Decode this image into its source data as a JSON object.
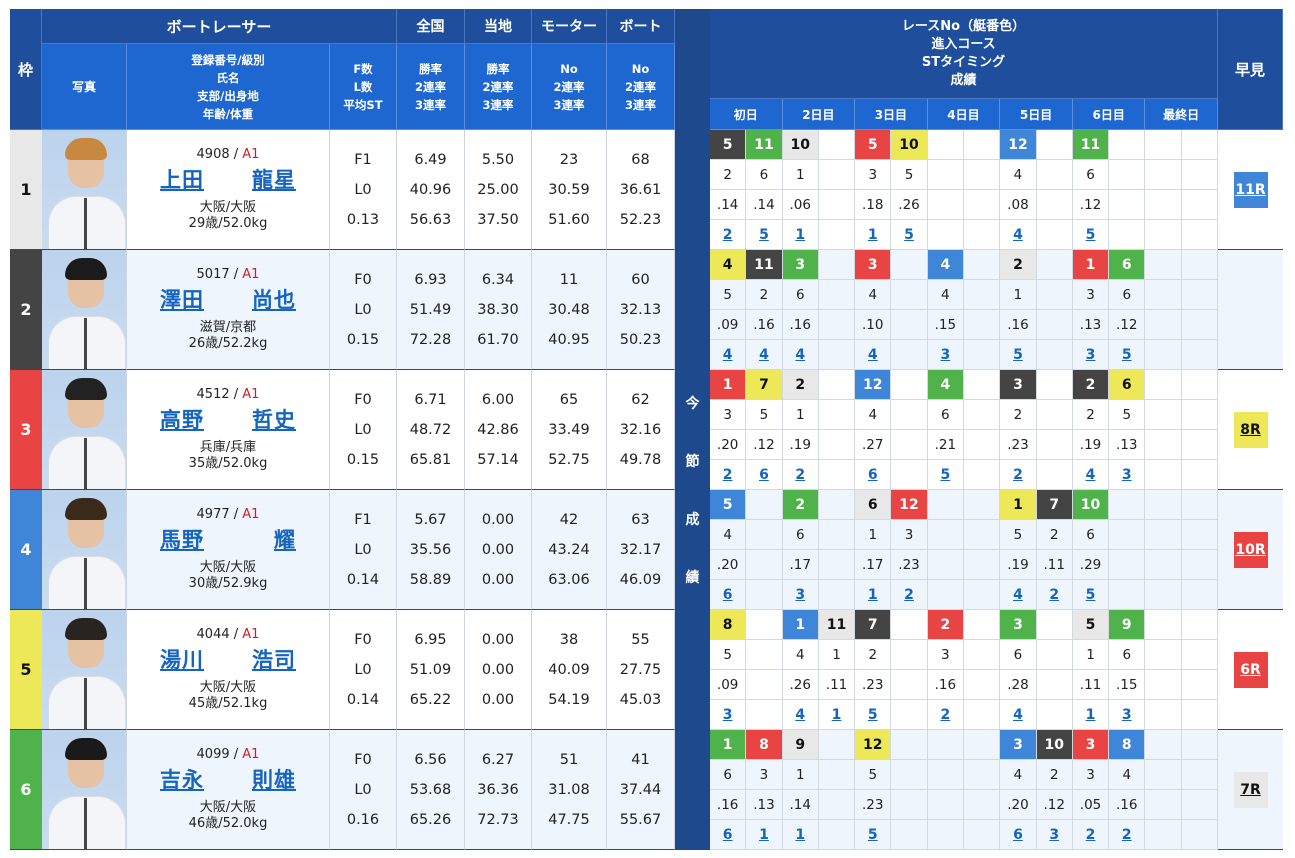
{
  "header": {
    "waku": "枠",
    "racer_group": "ボートレーサー",
    "photo": "写真",
    "info": "登録番号/級別\n氏名\n支部/出身地\n年齢/体重",
    "fl": "F数\nL数\n平均ST",
    "national": "全国",
    "national_sub": "勝率\n2連率\n3連率",
    "local": "当地",
    "local_sub": "勝率\n2連率\n3連率",
    "motor": "モーター",
    "motor_sub": "No\n2連率\n3連率",
    "boat": "ボート",
    "boat_sub": "No\n2連率\n3連率",
    "results_title": "レースNo（艇番色）\n進入コース\nSTタイミング\n成績",
    "hayami": "早見",
    "days": [
      "初日",
      "2日目",
      "3日目",
      "4日目",
      "5日目",
      "6日目",
      "最終日"
    ],
    "konsetsu": [
      "今",
      "節",
      "成",
      "績"
    ]
  },
  "colors": {
    "boat1": "#e8e8e8",
    "boat2": "#444444",
    "boat3": "#e94444",
    "boat4": "#3f85d8",
    "boat5": "#ece857",
    "boat6": "#4fb24a",
    "header_dark": "#1f4f9c",
    "header_light": "#1e66d0",
    "link": "#1565c0"
  },
  "racers": [
    {
      "waku": "1",
      "reg": "4908",
      "cls": "A1",
      "name_family": "上田",
      "name_given": "龍星",
      "branch": "大阪/大阪",
      "age_weight": "29歳/52.0kg",
      "f": "F1",
      "l": "L0",
      "avg_st": "0.13",
      "national": [
        "6.49",
        "40.96",
        "56.63"
      ],
      "local": [
        "5.50",
        "25.00",
        "37.50"
      ],
      "motor": [
        "23",
        "30.59",
        "51.60"
      ],
      "boat": [
        "68",
        "36.61",
        "52.23"
      ],
      "races": [
        {
          "race": "5",
          "boat": 2,
          "course": "2",
          "st": ".14",
          "result": "2"
        },
        {
          "race": "11",
          "boat": 6,
          "course": "6",
          "st": ".14",
          "result": "5"
        },
        {
          "race": "10",
          "boat": 1,
          "course": "1",
          "st": ".06",
          "result": "1"
        },
        null,
        {
          "race": "5",
          "boat": 3,
          "course": "3",
          "st": ".18",
          "result": "1"
        },
        {
          "race": "10",
          "boat": 5,
          "course": "5",
          "st": ".26",
          "result": "5"
        },
        null,
        null,
        {
          "race": "12",
          "boat": 4,
          "course": "4",
          "st": ".08",
          "result": "4"
        },
        null,
        {
          "race": "11",
          "boat": 6,
          "course": "6",
          "st": ".12",
          "result": "5"
        },
        null,
        null,
        null
      ],
      "hayami": {
        "label": "11R",
        "boat": 4
      }
    },
    {
      "waku": "2",
      "reg": "5017",
      "cls": "A1",
      "name_family": "澤田",
      "name_given": "尚也",
      "branch": "滋賀/京都",
      "age_weight": "26歳/52.2kg",
      "f": "F0",
      "l": "L0",
      "avg_st": "0.15",
      "national": [
        "6.93",
        "51.49",
        "72.28"
      ],
      "local": [
        "6.34",
        "38.30",
        "61.70"
      ],
      "motor": [
        "11",
        "30.48",
        "40.95"
      ],
      "boat": [
        "60",
        "32.13",
        "50.23"
      ],
      "races": [
        {
          "race": "4",
          "boat": 5,
          "course": "5",
          "st": ".09",
          "result": "4"
        },
        {
          "race": "11",
          "boat": 2,
          "course": "2",
          "st": ".16",
          "result": "4"
        },
        {
          "race": "3",
          "boat": 6,
          "course": "6",
          "st": ".16",
          "result": "4"
        },
        null,
        {
          "race": "3",
          "boat": 3,
          "course": "4",
          "st": ".10",
          "result": "4"
        },
        null,
        {
          "race": "4",
          "boat": 4,
          "course": "4",
          "st": ".15",
          "result": "3"
        },
        null,
        {
          "race": "2",
          "boat": 1,
          "course": "1",
          "st": ".16",
          "result": "5"
        },
        null,
        {
          "race": "1",
          "boat": 3,
          "course": "3",
          "st": ".13",
          "result": "3"
        },
        {
          "race": "6",
          "boat": 6,
          "course": "6",
          "st": ".12",
          "result": "5"
        },
        null,
        null
      ],
      "hayami": null
    },
    {
      "waku": "3",
      "reg": "4512",
      "cls": "A1",
      "name_family": "高野",
      "name_given": "哲史",
      "branch": "兵庫/兵庫",
      "age_weight": "35歳/52.0kg",
      "f": "F0",
      "l": "L0",
      "avg_st": "0.15",
      "national": [
        "6.71",
        "48.72",
        "65.81"
      ],
      "local": [
        "6.00",
        "42.86",
        "57.14"
      ],
      "motor": [
        "65",
        "33.49",
        "52.75"
      ],
      "boat": [
        "62",
        "32.16",
        "49.78"
      ],
      "races": [
        {
          "race": "1",
          "boat": 3,
          "course": "3",
          "st": ".20",
          "result": "2"
        },
        {
          "race": "7",
          "boat": 5,
          "course": "5",
          "st": ".12",
          "result": "6"
        },
        {
          "race": "2",
          "boat": 1,
          "course": "1",
          "st": ".19",
          "result": "2"
        },
        null,
        {
          "race": "12",
          "boat": 4,
          "course": "4",
          "st": ".27",
          "result": "6"
        },
        null,
        {
          "race": "4",
          "boat": 6,
          "course": "6",
          "st": ".21",
          "result": "5"
        },
        null,
        {
          "race": "3",
          "boat": 2,
          "course": "2",
          "st": ".23",
          "result": "2"
        },
        null,
        {
          "race": "2",
          "boat": 2,
          "course": "2",
          "st": ".19",
          "result": "4"
        },
        {
          "race": "6",
          "boat": 5,
          "course": "5",
          "st": ".13",
          "result": "3"
        },
        null,
        null
      ],
      "hayami": {
        "label": "8R",
        "boat": 5
      }
    },
    {
      "waku": "4",
      "reg": "4977",
      "cls": "A1",
      "name_family": "馬野",
      "name_given": "耀",
      "branch": "大阪/大阪",
      "age_weight": "30歳/52.9kg",
      "f": "F1",
      "l": "L0",
      "avg_st": "0.14",
      "national": [
        "5.67",
        "35.56",
        "58.89"
      ],
      "local": [
        "0.00",
        "0.00",
        "0.00"
      ],
      "motor": [
        "42",
        "43.24",
        "63.06"
      ],
      "boat": [
        "63",
        "32.17",
        "46.09"
      ],
      "races": [
        {
          "race": "5",
          "boat": 4,
          "course": "4",
          "st": ".20",
          "result": "6"
        },
        null,
        {
          "race": "2",
          "boat": 6,
          "course": "6",
          "st": ".17",
          "result": "3"
        },
        null,
        {
          "race": "6",
          "boat": 1,
          "course": "1",
          "st": ".17",
          "result": "1"
        },
        {
          "race": "12",
          "boat": 3,
          "course": "3",
          "st": ".23",
          "result": "2"
        },
        null,
        null,
        {
          "race": "1",
          "boat": 5,
          "course": "5",
          "st": ".19",
          "result": "4"
        },
        {
          "race": "7",
          "boat": 2,
          "course": "2",
          "st": ".11",
          "result": "2"
        },
        {
          "race": "10",
          "boat": 6,
          "course": "6",
          "st": ".29",
          "result": "5"
        },
        null,
        null,
        null
      ],
      "hayami": {
        "label": "10R",
        "boat": 3
      }
    },
    {
      "waku": "5",
      "reg": "4044",
      "cls": "A1",
      "name_family": "湯川",
      "name_given": "浩司",
      "branch": "大阪/大阪",
      "age_weight": "45歳/52.1kg",
      "f": "F0",
      "l": "L0",
      "avg_st": "0.14",
      "national": [
        "6.95",
        "51.09",
        "65.22"
      ],
      "local": [
        "0.00",
        "0.00",
        "0.00"
      ],
      "motor": [
        "38",
        "40.09",
        "54.19"
      ],
      "boat": [
        "55",
        "27.75",
        "45.03"
      ],
      "races": [
        {
          "race": "8",
          "boat": 5,
          "course": "5",
          "st": ".09",
          "result": "3"
        },
        null,
        {
          "race": "1",
          "boat": 4,
          "course": "4",
          "st": ".26",
          "result": "4"
        },
        {
          "race": "11",
          "boat": 1,
          "course": "1",
          "st": ".11",
          "result": "1"
        },
        {
          "race": "7",
          "boat": 2,
          "course": "2",
          "st": ".23",
          "result": "5"
        },
        null,
        {
          "race": "2",
          "boat": 3,
          "course": "3",
          "st": ".16",
          "result": "2"
        },
        null,
        {
          "race": "3",
          "boat": 6,
          "course": "6",
          "st": ".28",
          "result": "4"
        },
        null,
        {
          "race": "5",
          "boat": 1,
          "course": "1",
          "st": ".11",
          "result": "1"
        },
        {
          "race": "9",
          "boat": 6,
          "course": "6",
          "st": ".15",
          "result": "3"
        },
        null,
        null
      ],
      "hayami": {
        "label": "6R",
        "boat": 3
      }
    },
    {
      "waku": "6",
      "reg": "4099",
      "cls": "A1",
      "name_family": "吉永",
      "name_given": "則雄",
      "branch": "大阪/大阪",
      "age_weight": "46歳/52.0kg",
      "f": "F0",
      "l": "L0",
      "avg_st": "0.16",
      "national": [
        "6.56",
        "53.68",
        "65.26"
      ],
      "local": [
        "6.27",
        "36.36",
        "72.73"
      ],
      "motor": [
        "51",
        "31.08",
        "47.75"
      ],
      "boat": [
        "41",
        "37.44",
        "55.67"
      ],
      "races": [
        {
          "race": "1",
          "boat": 6,
          "course": "6",
          "st": ".16",
          "result": "6"
        },
        {
          "race": "8",
          "boat": 3,
          "course": "3",
          "st": ".13",
          "result": "1"
        },
        {
          "race": "9",
          "boat": 1,
          "course": "1",
          "st": ".14",
          "result": "1"
        },
        null,
        {
          "race": "12",
          "boat": 5,
          "course": "5",
          "st": ".23",
          "result": "5"
        },
        null,
        null,
        null,
        {
          "race": "3",
          "boat": 4,
          "course": "4",
          "st": ".20",
          "result": "6"
        },
        {
          "race": "10",
          "boat": 2,
          "course": "2",
          "st": ".12",
          "result": "3"
        },
        {
          "race": "3",
          "boat": 3,
          "course": "3",
          "st": ".05",
          "result": "2"
        },
        {
          "race": "8",
          "boat": 4,
          "course": "4",
          "st": ".16",
          "result": "2"
        },
        null,
        null
      ],
      "hayami": {
        "label": "7R",
        "boat": 1
      }
    }
  ]
}
